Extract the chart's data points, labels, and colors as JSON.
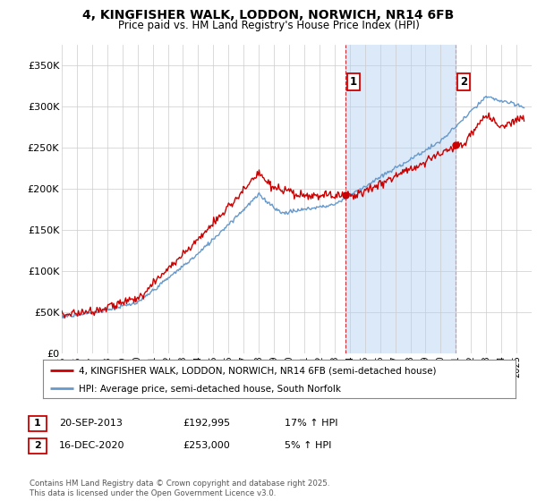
{
  "title_line1": "4, KINGFISHER WALK, LODDON, NORWICH, NR14 6FB",
  "title_line2": "Price paid vs. HM Land Registry's House Price Index (HPI)",
  "legend_line1": "4, KINGFISHER WALK, LODDON, NORWICH, NR14 6FB (semi-detached house)",
  "legend_line2": "HPI: Average price, semi-detached house, South Norfolk",
  "annotation1_date": "20-SEP-2013",
  "annotation1_price": "£192,995",
  "annotation1_hpi": "17% ↑ HPI",
  "annotation2_date": "16-DEC-2020",
  "annotation2_price": "£253,000",
  "annotation2_hpi": "5% ↑ HPI",
  "footer": "Contains HM Land Registry data © Crown copyright and database right 2025.\nThis data is licensed under the Open Government Licence v3.0.",
  "property_color": "#cc0000",
  "hpi_color": "#6699cc",
  "hpi_fill_color": "#dce9f8",
  "background_color": "#ffffff",
  "ylim_min": 0,
  "ylim_max": 375000,
  "yticks": [
    0,
    50000,
    100000,
    150000,
    200000,
    250000,
    300000,
    350000
  ],
  "ytick_labels": [
    "£0",
    "£50K",
    "£100K",
    "£150K",
    "£200K",
    "£250K",
    "£300K",
    "£350K"
  ],
  "sale1_x": 2013.72,
  "sale1_y": 192995,
  "sale2_x": 2020.96,
  "sale2_y": 253000,
  "xmin": 1995,
  "xmax": 2026
}
